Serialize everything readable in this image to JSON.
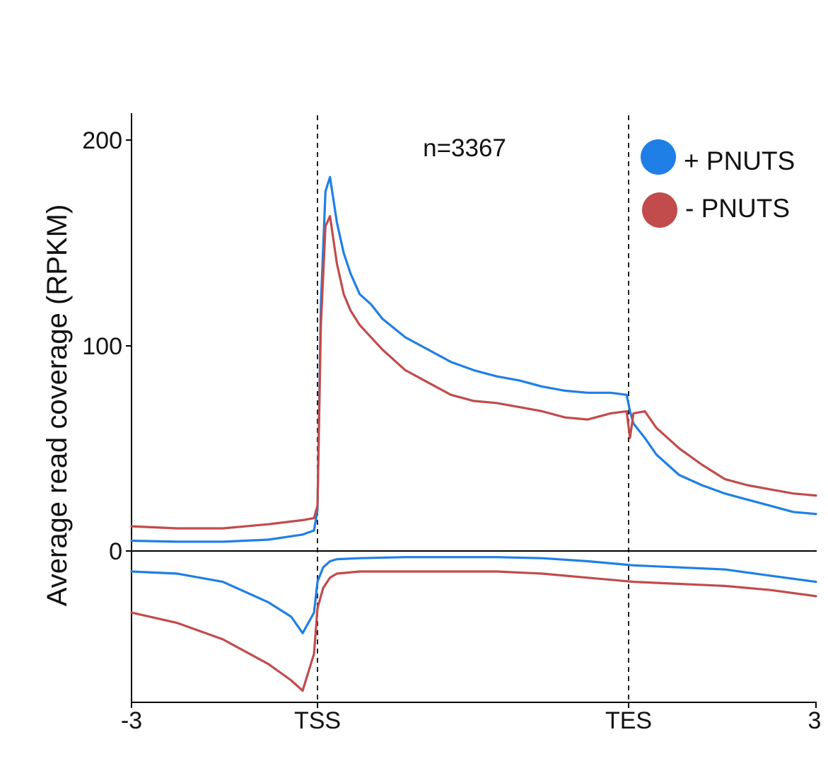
{
  "chart_data": {
    "type": "line",
    "title": "",
    "ylabel": "Average read coverage (RPKM)",
    "xlabel": "",
    "annotation": "n=3367",
    "x_ticks": [
      "-3",
      "TSS",
      "TES",
      "3"
    ],
    "y_ticks": [
      0,
      100,
      200
    ],
    "ylim": [
      -73,
      212
    ],
    "xlim": [
      0,
      3
    ],
    "x_scale_note": "",
    "reference_lines": [
      {
        "x": 0.815,
        "style": "dashed"
      },
      {
        "x": 2.185,
        "style": "dashed"
      },
      {
        "y": 0,
        "style": "solid"
      }
    ],
    "grid": false,
    "legend_position": "top-right",
    "series": [
      {
        "name": "+ PNUTS",
        "color": "#1f7fe6",
        "sense": {
          "x": [
            0.0,
            0.2,
            0.4,
            0.6,
            0.75,
            0.8,
            0.815,
            0.83,
            0.85,
            0.87,
            0.9,
            0.93,
            0.96,
            1.0,
            1.05,
            1.1,
            1.2,
            1.3,
            1.4,
            1.5,
            1.6,
            1.7,
            1.8,
            1.9,
            2.0,
            2.1,
            2.17,
            2.185,
            2.2,
            2.25,
            2.3,
            2.4,
            2.5,
            2.6,
            2.7,
            2.8,
            2.9,
            3.0
          ],
          "y": [
            5,
            4.5,
            4.5,
            5.5,
            8,
            10,
            20,
            120,
            175,
            182,
            160,
            145,
            135,
            125,
            120,
            113,
            104,
            98,
            92,
            88,
            85,
            83,
            80,
            78,
            77,
            77,
            76,
            68,
            62,
            55,
            47,
            37,
            32,
            28,
            25,
            22,
            19,
            18
          ]
        },
        "antisense": {
          "x": [
            0.0,
            0.2,
            0.4,
            0.6,
            0.7,
            0.75,
            0.8,
            0.815,
            0.84,
            0.87,
            0.9,
            1.0,
            1.2,
            1.4,
            1.6,
            1.8,
            2.0,
            2.2,
            2.4,
            2.6,
            2.8,
            3.0
          ],
          "y": [
            -10,
            -11,
            -15,
            -25,
            -32,
            -40,
            -30,
            -15,
            -8,
            -5,
            -4,
            -3.5,
            -3,
            -3,
            -3,
            -3.5,
            -5,
            -7,
            -8,
            -9,
            -12,
            -15
          ]
        }
      },
      {
        "name": "- PNUTS",
        "color": "#c24b4b",
        "sense": {
          "x": [
            0.0,
            0.2,
            0.4,
            0.6,
            0.75,
            0.8,
            0.815,
            0.83,
            0.85,
            0.87,
            0.9,
            0.93,
            0.96,
            1.0,
            1.05,
            1.1,
            1.2,
            1.3,
            1.4,
            1.5,
            1.6,
            1.7,
            1.8,
            1.9,
            2.0,
            2.1,
            2.17,
            2.185,
            2.2,
            2.25,
            2.3,
            2.4,
            2.5,
            2.6,
            2.7,
            2.8,
            2.9,
            3.0
          ],
          "y": [
            12,
            11,
            11,
            13,
            15,
            16,
            22,
            110,
            158,
            163,
            140,
            125,
            117,
            110,
            104,
            98,
            88,
            82,
            76,
            73,
            72,
            70,
            68,
            65,
            64,
            67,
            68,
            55,
            67,
            68,
            60,
            50,
            42,
            35,
            32,
            30,
            28,
            27
          ]
        },
        "antisense": {
          "x": [
            0.0,
            0.2,
            0.4,
            0.6,
            0.7,
            0.75,
            0.8,
            0.815,
            0.84,
            0.87,
            0.9,
            1.0,
            1.2,
            1.4,
            1.6,
            1.8,
            2.0,
            2.2,
            2.4,
            2.6,
            2.8,
            3.0
          ],
          "y": [
            -30,
            -35,
            -43,
            -55,
            -63,
            -68,
            -50,
            -28,
            -18,
            -13,
            -11,
            -10,
            -10,
            -10,
            -10,
            -11,
            -13,
            -15,
            -16,
            -17,
            -19,
            -22
          ]
        }
      }
    ]
  }
}
